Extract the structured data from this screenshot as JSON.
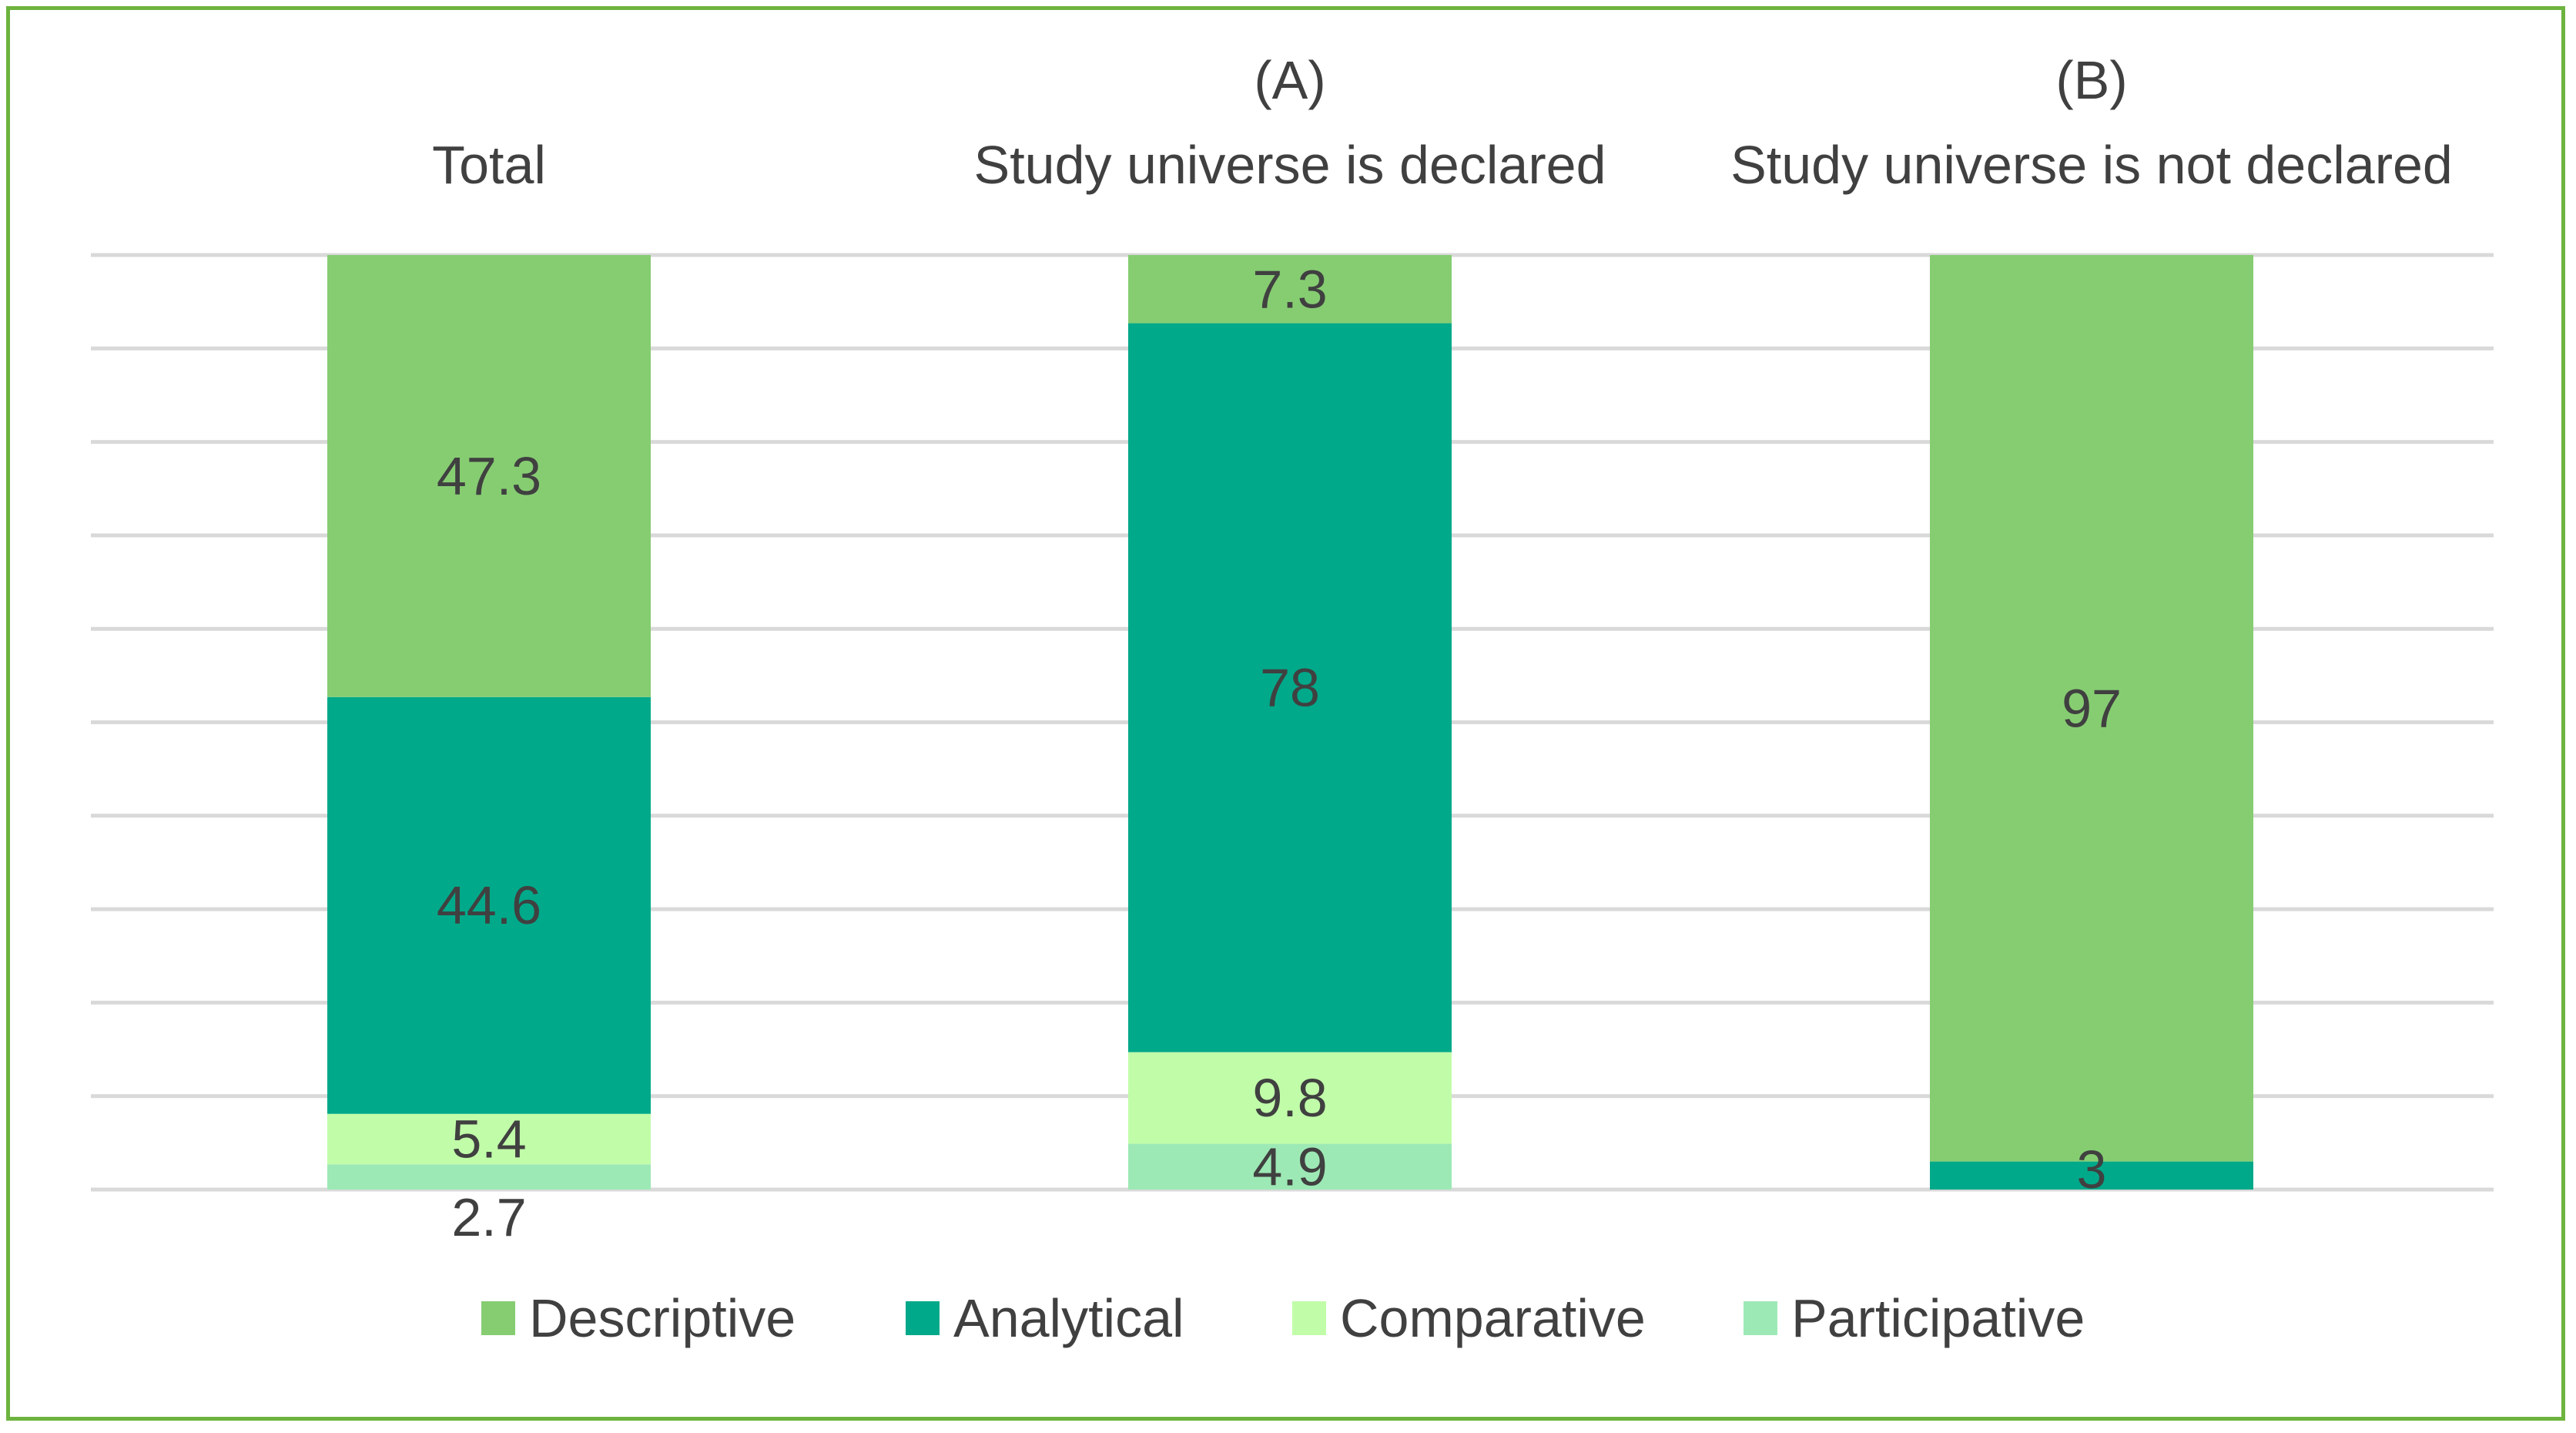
{
  "chart_data": {
    "type": "bar",
    "stacked": true,
    "normalized_percent": true,
    "groups": [
      {
        "heading": "",
        "label": "Total"
      },
      {
        "heading": "(A)",
        "label": "Study universe is declared"
      },
      {
        "heading": "(B)",
        "label": "Study universe is not declared"
      }
    ],
    "categories": [
      "Total",
      "Study universe is declared",
      "Study universe is not declared"
    ],
    "series": [
      {
        "name": "Participative",
        "color": "#9de9b5",
        "values": [
          2.7,
          4.9,
          0
        ]
      },
      {
        "name": "Comparative",
        "color": "#c1fda9",
        "values": [
          5.4,
          9.8,
          0
        ]
      },
      {
        "name": "Analytical",
        "color": "#00a98a",
        "values": [
          44.6,
          78,
          3
        ]
      },
      {
        "name": "Descriptive",
        "color": "#86cd72",
        "values": [
          47.3,
          7.3,
          97
        ]
      }
    ],
    "legend": [
      "Descriptive",
      "Analytical",
      "Comparative",
      "Participative"
    ],
    "legend_position": "bottom",
    "ylim": [
      0,
      100
    ],
    "grid": true,
    "grid_color": "#d9d9d9",
    "label_color": "#404040",
    "frame_color": "#6db33f"
  }
}
